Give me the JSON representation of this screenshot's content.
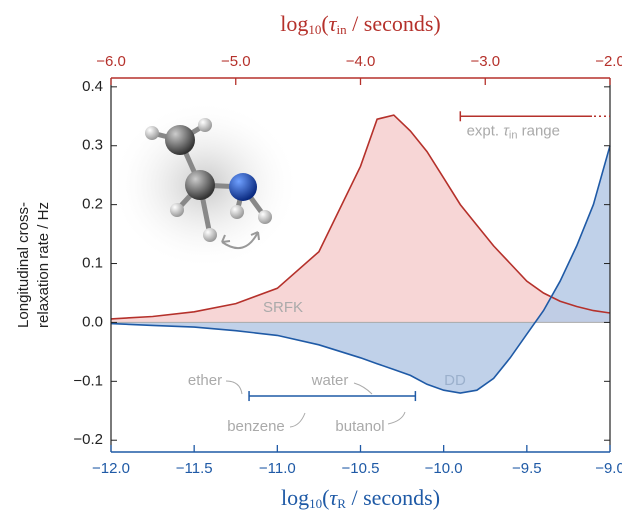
{
  "chart_data": {
    "type": "line",
    "x_label": {
      "main": "log",
      "base": "10",
      "open": "(",
      "symbol": "τ",
      "sub": "R",
      "rest": " / seconds)"
    },
    "x2_label": {
      "main": "log",
      "base": "10",
      "open": "(",
      "symbol": "τ",
      "sub": "in",
      "rest": " / seconds)"
    },
    "y_label": [
      "Longitudinal cross-",
      "relaxation rate / Hz"
    ],
    "x": [
      -12,
      -11.75,
      -11.5,
      -11.25,
      -11,
      -10.75,
      -10.5,
      -10.4,
      -10.3,
      -10.2,
      -10.1,
      -10,
      -9.9,
      -9.8,
      -9.7,
      -9.6,
      -9.5,
      -9.4,
      -9.3,
      -9.2,
      -9.1,
      -9
    ],
    "series": [
      {
        "name": "SRFK",
        "color": "#b5312b",
        "fill": "#f6d2d2",
        "values": [
          0.006,
          0.01,
          0.018,
          0.032,
          0.058,
          0.12,
          0.265,
          0.345,
          0.352,
          0.325,
          0.29,
          0.245,
          0.2,
          0.165,
          0.13,
          0.1,
          0.07,
          0.05,
          0.036,
          0.027,
          0.02,
          0.016
        ]
      },
      {
        "name": "DD",
        "color": "#1f5aa6",
        "fill": "#b9cce7",
        "values": [
          -0.002,
          -0.005,
          -0.008,
          -0.014,
          -0.022,
          -0.038,
          -0.06,
          -0.07,
          -0.08,
          -0.09,
          -0.105,
          -0.115,
          -0.12,
          -0.115,
          -0.095,
          -0.06,
          -0.02,
          0.02,
          0.07,
          0.13,
          0.2,
          0.3
        ]
      }
    ],
    "xlim": [
      -12,
      -9
    ],
    "xticks": [
      {
        "value": -12,
        "label": "−12.0"
      },
      {
        "value": -11.5,
        "label": "−11.5"
      },
      {
        "value": -11,
        "label": "−11.0"
      },
      {
        "value": -10.5,
        "label": "−10.5"
      },
      {
        "value": -10,
        "label": "−10.0"
      },
      {
        "value": -9.5,
        "label": "−9.5"
      },
      {
        "value": -9,
        "label": "−9.0"
      }
    ],
    "x2lim": [
      -6,
      -2
    ],
    "x2ticks": [
      {
        "value": -6,
        "label": "−6.0"
      },
      {
        "value": -5,
        "label": "−5.0"
      },
      {
        "value": -4,
        "label": "−4.0"
      },
      {
        "value": -3,
        "label": "−3.0"
      },
      {
        "value": -2,
        "label": "−2.0"
      }
    ],
    "ylim": [
      -0.22,
      0.415
    ],
    "yticks": [
      {
        "value": -0.2,
        "label": "−0.2"
      },
      {
        "value": -0.1,
        "label": "−0.1"
      },
      {
        "value": 0,
        "label": "0.0"
      },
      0.1,
      0.2,
      0.3,
      0.4
    ],
    "solvent_range": {
      "x": [
        -11.17,
        -10.17
      ],
      "y": -0.125,
      "labels": [
        "ether",
        "water",
        "benzene",
        "butanol"
      ]
    },
    "expt_range": {
      "x2": [
        -3.2,
        -2.0
      ],
      "y": 0.35,
      "label": {
        "main": "expt. ",
        "symbol": "τ",
        "sub": "in",
        "rest": " range"
      }
    }
  }
}
